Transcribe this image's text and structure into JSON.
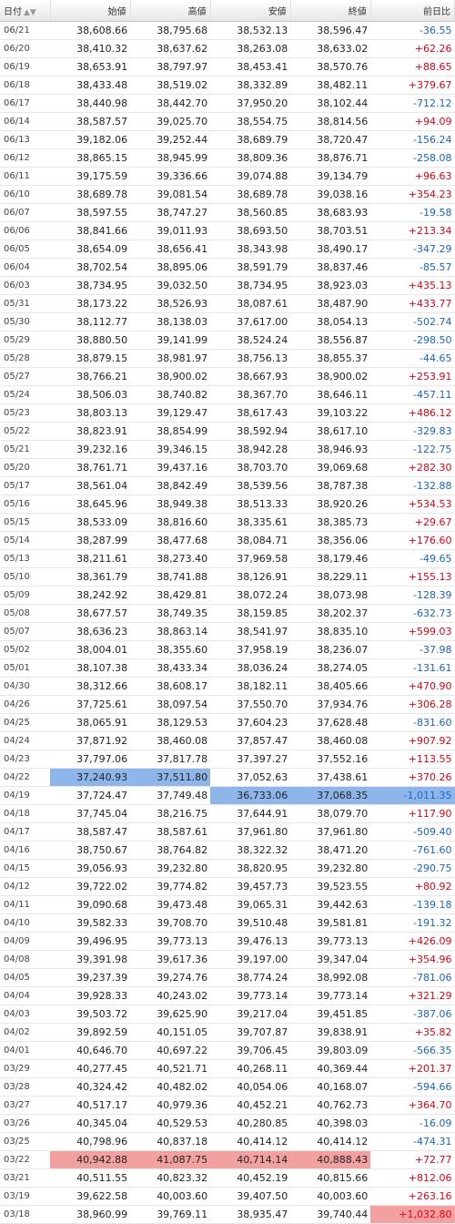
{
  "headers": [
    "日付",
    "始値",
    "高値",
    "安値",
    "終値",
    "前日比"
  ],
  "rows": [
    {
      "date": "06/21",
      "open": "38,608.66",
      "high": "38,795.68",
      "low": "38,532.13",
      "close": "38,596.47",
      "change": "-36.55",
      "dir": "neg"
    },
    {
      "date": "06/20",
      "open": "38,410.32",
      "high": "38,637.62",
      "low": "38,263.08",
      "close": "38,633.02",
      "change": "+62.26",
      "dir": "pos"
    },
    {
      "date": "06/19",
      "open": "38,653.91",
      "high": "38,797.97",
      "low": "38,453.41",
      "close": "38,570.76",
      "change": "+88.65",
      "dir": "pos"
    },
    {
      "date": "06/18",
      "open": "38,433.48",
      "high": "38,519.02",
      "low": "38,332.89",
      "close": "38,482.11",
      "change": "+379.67",
      "dir": "pos"
    },
    {
      "date": "06/17",
      "open": "38,440.98",
      "high": "38,442.70",
      "low": "37,950.20",
      "close": "38,102.44",
      "change": "-712.12",
      "dir": "neg"
    },
    {
      "date": "06/14",
      "open": "38,587.57",
      "high": "39,025.70",
      "low": "38,554.75",
      "close": "38,814.56",
      "change": "+94.09",
      "dir": "pos"
    },
    {
      "date": "06/13",
      "open": "39,182.06",
      "high": "39,252.44",
      "low": "38,689.79",
      "close": "38,720.47",
      "change": "-156.24",
      "dir": "neg"
    },
    {
      "date": "06/12",
      "open": "38,865.15",
      "high": "38,945.99",
      "low": "38,809.36",
      "close": "38,876.71",
      "change": "-258.08",
      "dir": "neg"
    },
    {
      "date": "06/11",
      "open": "39,175.59",
      "high": "39,336.66",
      "low": "39,074.88",
      "close": "39,134.79",
      "change": "+96.63",
      "dir": "pos"
    },
    {
      "date": "06/10",
      "open": "38,689.78",
      "high": "39,081.54",
      "low": "38,689.78",
      "close": "39,038.16",
      "change": "+354.23",
      "dir": "pos"
    },
    {
      "date": "06/07",
      "open": "38,597.55",
      "high": "38,747.27",
      "low": "38,560.85",
      "close": "38,683.93",
      "change": "-19.58",
      "dir": "neg"
    },
    {
      "date": "06/06",
      "open": "38,841.66",
      "high": "39,011.93",
      "low": "38,693.50",
      "close": "38,703.51",
      "change": "+213.34",
      "dir": "pos"
    },
    {
      "date": "06/05",
      "open": "38,654.09",
      "high": "38,656.41",
      "low": "38,343.98",
      "close": "38,490.17",
      "change": "-347.29",
      "dir": "neg"
    },
    {
      "date": "06/04",
      "open": "38,702.54",
      "high": "38,895.06",
      "low": "38,591.79",
      "close": "38,837.46",
      "change": "-85.57",
      "dir": "neg"
    },
    {
      "date": "06/03",
      "open": "38,734.95",
      "high": "39,032.50",
      "low": "38,734.95",
      "close": "38,923.03",
      "change": "+435.13",
      "dir": "pos"
    },
    {
      "date": "05/31",
      "open": "38,173.22",
      "high": "38,526.93",
      "low": "38,087.61",
      "close": "38,487.90",
      "change": "+433.77",
      "dir": "pos"
    },
    {
      "date": "05/30",
      "open": "38,112.77",
      "high": "38,138.03",
      "low": "37,617.00",
      "close": "38,054.13",
      "change": "-502.74",
      "dir": "neg"
    },
    {
      "date": "05/29",
      "open": "38,880.50",
      "high": "39,141.99",
      "low": "38,524.24",
      "close": "38,556.87",
      "change": "-298.50",
      "dir": "neg"
    },
    {
      "date": "05/28",
      "open": "38,879.15",
      "high": "38,981.97",
      "low": "38,756.13",
      "close": "38,855.37",
      "change": "-44.65",
      "dir": "neg"
    },
    {
      "date": "05/27",
      "open": "38,766.21",
      "high": "38,900.02",
      "low": "38,667.93",
      "close": "38,900.02",
      "change": "+253.91",
      "dir": "pos"
    },
    {
      "date": "05/24",
      "open": "38,506.03",
      "high": "38,740.82",
      "low": "38,367.70",
      "close": "38,646.11",
      "change": "-457.11",
      "dir": "neg"
    },
    {
      "date": "05/23",
      "open": "38,803.13",
      "high": "39,129.47",
      "low": "38,617.43",
      "close": "39,103.22",
      "change": "+486.12",
      "dir": "pos"
    },
    {
      "date": "05/22",
      "open": "38,823.91",
      "high": "38,854.99",
      "low": "38,592.94",
      "close": "38,617.10",
      "change": "-329.83",
      "dir": "neg"
    },
    {
      "date": "05/21",
      "open": "39,232.16",
      "high": "39,346.15",
      "low": "38,942.28",
      "close": "38,946.93",
      "change": "-122.75",
      "dir": "neg"
    },
    {
      "date": "05/20",
      "open": "38,761.71",
      "high": "39,437.16",
      "low": "38,703.70",
      "close": "39,069.68",
      "change": "+282.30",
      "dir": "pos"
    },
    {
      "date": "05/17",
      "open": "38,561.04",
      "high": "38,842.49",
      "low": "38,539.56",
      "close": "38,787.38",
      "change": "-132.88",
      "dir": "neg"
    },
    {
      "date": "05/16",
      "open": "38,645.96",
      "high": "38,949.38",
      "low": "38,513.33",
      "close": "38,920.26",
      "change": "+534.53",
      "dir": "pos"
    },
    {
      "date": "05/15",
      "open": "38,533.09",
      "high": "38,816.60",
      "low": "38,335.61",
      "close": "38,385.73",
      "change": "+29.67",
      "dir": "pos"
    },
    {
      "date": "05/14",
      "open": "38,287.99",
      "high": "38,477.68",
      "low": "38,084.71",
      "close": "38,356.06",
      "change": "+176.60",
      "dir": "pos"
    },
    {
      "date": "05/13",
      "open": "38,211.61",
      "high": "38,273.40",
      "low": "37,969.58",
      "close": "38,179.46",
      "change": "-49.65",
      "dir": "neg"
    },
    {
      "date": "05/10",
      "open": "38,361.79",
      "high": "38,741.88",
      "low": "38,126.91",
      "close": "38,229.11",
      "change": "+155.13",
      "dir": "pos"
    },
    {
      "date": "05/09",
      "open": "38,242.92",
      "high": "38,429.81",
      "low": "38,072.24",
      "close": "38,073.98",
      "change": "-128.39",
      "dir": "neg"
    },
    {
      "date": "05/08",
      "open": "38,677.57",
      "high": "38,749.35",
      "low": "38,159.85",
      "close": "38,202.37",
      "change": "-632.73",
      "dir": "neg"
    },
    {
      "date": "05/07",
      "open": "38,636.23",
      "high": "38,863.14",
      "low": "38,541.97",
      "close": "38,835.10",
      "change": "+599.03",
      "dir": "pos"
    },
    {
      "date": "05/02",
      "open": "38,004.01",
      "high": "38,355.60",
      "low": "37,958.19",
      "close": "38,236.07",
      "change": "-37.98",
      "dir": "neg"
    },
    {
      "date": "05/01",
      "open": "38,107.38",
      "high": "38,433.34",
      "low": "38,036.24",
      "close": "38,274.05",
      "change": "-131.61",
      "dir": "neg"
    },
    {
      "date": "04/30",
      "open": "38,312.66",
      "high": "38,608.17",
      "low": "38,182.11",
      "close": "38,405.66",
      "change": "+470.90",
      "dir": "pos"
    },
    {
      "date": "04/26",
      "open": "37,725.61",
      "high": "38,097.54",
      "low": "37,550.70",
      "close": "37,934.76",
      "change": "+306.28",
      "dir": "pos"
    },
    {
      "date": "04/25",
      "open": "38,065.91",
      "high": "38,129.53",
      "low": "37,604.23",
      "close": "37,628.48",
      "change": "-831.60",
      "dir": "neg"
    },
    {
      "date": "04/24",
      "open": "37,871.92",
      "high": "38,460.08",
      "low": "37,857.47",
      "close": "38,460.08",
      "change": "+907.92",
      "dir": "pos"
    },
    {
      "date": "04/23",
      "open": "37,797.06",
      "high": "37,817.78",
      "low": "37,397.27",
      "close": "37,552.16",
      "change": "+113.55",
      "dir": "pos"
    },
    {
      "date": "04/22",
      "open": "37,240.93",
      "high": "37,511.80",
      "low": "37,052.63",
      "close": "37,438.61",
      "change": "+370.26",
      "dir": "pos",
      "hl": [
        "open",
        "high"
      ],
      "hlcolor": "blue"
    },
    {
      "date": "04/19",
      "open": "37,724.47",
      "high": "37,749.48",
      "low": "36,733.06",
      "close": "37,068.35",
      "change": "-1,011.35",
      "dir": "neg",
      "hl": [
        "low",
        "close",
        "change"
      ],
      "hlcolor": "blue"
    },
    {
      "date": "04/18",
      "open": "37,745.04",
      "high": "38,216.75",
      "low": "37,644.91",
      "close": "38,079.70",
      "change": "+117.90",
      "dir": "pos"
    },
    {
      "date": "04/17",
      "open": "38,587.47",
      "high": "38,587.61",
      "low": "37,961.80",
      "close": "37,961.80",
      "change": "-509.40",
      "dir": "neg"
    },
    {
      "date": "04/16",
      "open": "38,750.67",
      "high": "38,764.82",
      "low": "38,322.32",
      "close": "38,471.20",
      "change": "-761.60",
      "dir": "neg"
    },
    {
      "date": "04/15",
      "open": "39,056.93",
      "high": "39,232.80",
      "low": "38,820.95",
      "close": "39,232.80",
      "change": "-290.75",
      "dir": "neg"
    },
    {
      "date": "04/12",
      "open": "39,722.02",
      "high": "39,774.82",
      "low": "39,457.73",
      "close": "39,523.55",
      "change": "+80.92",
      "dir": "pos"
    },
    {
      "date": "04/11",
      "open": "39,090.68",
      "high": "39,473.48",
      "low": "39,065.31",
      "close": "39,442.63",
      "change": "-139.18",
      "dir": "neg"
    },
    {
      "date": "04/10",
      "open": "39,582.33",
      "high": "39,708.70",
      "low": "39,510.48",
      "close": "39,581.81",
      "change": "-191.32",
      "dir": "neg"
    },
    {
      "date": "04/09",
      "open": "39,496.95",
      "high": "39,773.13",
      "low": "39,476.13",
      "close": "39,773.13",
      "change": "+426.09",
      "dir": "pos"
    },
    {
      "date": "04/08",
      "open": "39,391.98",
      "high": "39,617.36",
      "low": "39,197.00",
      "close": "39,347.04",
      "change": "+354.96",
      "dir": "pos"
    },
    {
      "date": "04/05",
      "open": "39,237.39",
      "high": "39,274.76",
      "low": "38,774.24",
      "close": "38,992.08",
      "change": "-781.06",
      "dir": "neg"
    },
    {
      "date": "04/04",
      "open": "39,928.33",
      "high": "40,243.02",
      "low": "39,773.14",
      "close": "39,773.14",
      "change": "+321.29",
      "dir": "pos"
    },
    {
      "date": "04/03",
      "open": "39,503.72",
      "high": "39,625.90",
      "low": "39,217.04",
      "close": "39,451.85",
      "change": "-387.06",
      "dir": "neg"
    },
    {
      "date": "04/02",
      "open": "39,892.59",
      "high": "40,151.05",
      "low": "39,707.87",
      "close": "39,838.91",
      "change": "+35.82",
      "dir": "pos"
    },
    {
      "date": "04/01",
      "open": "40,646.70",
      "high": "40,697.22",
      "low": "39,706.45",
      "close": "39,803.09",
      "change": "-566.35",
      "dir": "neg"
    },
    {
      "date": "03/29",
      "open": "40,277.45",
      "high": "40,521.71",
      "low": "40,268.11",
      "close": "40,369.44",
      "change": "+201.37",
      "dir": "pos"
    },
    {
      "date": "03/28",
      "open": "40,324.42",
      "high": "40,482.02",
      "low": "40,054.06",
      "close": "40,168.07",
      "change": "-594.66",
      "dir": "neg"
    },
    {
      "date": "03/27",
      "open": "40,517.17",
      "high": "40,979.36",
      "low": "40,452.21",
      "close": "40,762.73",
      "change": "+364.70",
      "dir": "pos"
    },
    {
      "date": "03/26",
      "open": "40,345.04",
      "high": "40,529.53",
      "low": "40,280.85",
      "close": "40,398.03",
      "change": "-16.09",
      "dir": "neg"
    },
    {
      "date": "03/25",
      "open": "40,798.96",
      "high": "40,837.18",
      "low": "40,414.12",
      "close": "40,414.12",
      "change": "-474.31",
      "dir": "neg"
    },
    {
      "date": "03/22",
      "open": "40,942.88",
      "high": "41,087.75",
      "low": "40,714.14",
      "close": "40,888.43",
      "change": "+72.77",
      "dir": "pos",
      "hl": [
        "open",
        "high",
        "low",
        "close"
      ],
      "hlcolor": "red"
    },
    {
      "date": "03/21",
      "open": "40,511.55",
      "high": "40,823.32",
      "low": "40,452.19",
      "close": "40,815.66",
      "change": "+812.06",
      "dir": "pos"
    },
    {
      "date": "03/19",
      "open": "39,622.58",
      "high": "40,003.60",
      "low": "39,407.50",
      "close": "40,003.60",
      "change": "+263.16",
      "dir": "pos"
    },
    {
      "date": "03/18",
      "open": "38,960.99",
      "high": "39,769.11",
      "low": "38,935.47",
      "close": "39,740.44",
      "change": "+1,032.80",
      "dir": "pos",
      "hl": [
        "change"
      ],
      "hlcolor": "red"
    }
  ]
}
